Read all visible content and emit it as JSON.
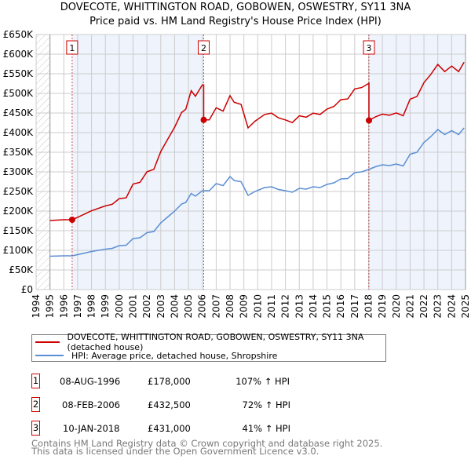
{
  "title": "DOVECOTE, WHITTINGTON ROAD, GOBOWEN, OSWESTRY, SY11 3NA",
  "subtitle": "Price paid vs. HM Land Registry's House Price Index (HPI)",
  "colors": {
    "property": "#cc0000",
    "hpi": "#5b8fd4",
    "shade": "#eef3fc",
    "grid": "#cccccc"
  },
  "chart_data": {
    "type": "line",
    "xlim": [
      1994,
      2025
    ],
    "ylim": [
      0,
      650000
    ],
    "yticks": [
      "£0",
      "£50K",
      "£100K",
      "£150K",
      "£200K",
      "£250K",
      "£300K",
      "£350K",
      "£400K",
      "£450K",
      "£500K",
      "£550K",
      "£600K",
      "£650K"
    ],
    "xticks": [
      "1994",
      "1995",
      "1996",
      "1997",
      "1998",
      "1999",
      "2000",
      "2001",
      "2002",
      "2003",
      "2004",
      "2005",
      "2006",
      "2007",
      "2008",
      "2009",
      "2010",
      "2011",
      "2012",
      "2013",
      "2014",
      "2015",
      "2016",
      "2017",
      "2018",
      "2019",
      "2020",
      "2021",
      "2022",
      "2023",
      "2024",
      "2025"
    ],
    "grid": true,
    "series": [
      {
        "name": "HPI: Average price, detached house, Shropshire",
        "x": [
          1995,
          1996,
          1996.6,
          1997,
          1998,
          1999,
          1999.5,
          2000,
          2000.5,
          2001,
          2001.5,
          2002,
          2002.5,
          2003,
          2003.5,
          2004,
          2004.5,
          2004.8,
          2005.2,
          2005.5,
          2006,
          2006.5,
          2007,
          2007.5,
          2008,
          2008.3,
          2008.8,
          2009.3,
          2009.8,
          2010.5,
          2011,
          2011.5,
          2012,
          2012.5,
          2013,
          2013.5,
          2014,
          2014.5,
          2015,
          2015.5,
          2016,
          2016.5,
          2017,
          2017.5,
          2018,
          2018.5,
          2019,
          2019.5,
          2020,
          2020.5,
          2021,
          2021.5,
          2022,
          2022.5,
          2023,
          2023.5,
          2024,
          2024.5,
          2024.9
        ],
        "y": [
          85000,
          86000,
          86000,
          89000,
          97000,
          103000,
          105000,
          112000,
          113000,
          130000,
          132000,
          145000,
          148000,
          170000,
          185000,
          200000,
          218000,
          222000,
          245000,
          238000,
          252000,
          252000,
          270000,
          265000,
          288000,
          278000,
          275000,
          240000,
          250000,
          260000,
          262000,
          255000,
          252000,
          248000,
          258000,
          256000,
          262000,
          260000,
          268000,
          272000,
          282000,
          283000,
          298000,
          300000,
          306000,
          313000,
          318000,
          316000,
          320000,
          315000,
          345000,
          350000,
          375000,
          390000,
          408000,
          395000,
          405000,
          395000,
          412000
        ]
      },
      {
        "name": "DOVECOTE, WHITTINGTON ROAD, GOBOWEN, OSWESTRY, SY11 3NA (detached house)",
        "derived": "HPI-indexed from each sale"
      }
    ],
    "sales": [
      {
        "id": "1",
        "x": 1996.6,
        "y": 178000
      },
      {
        "id": "2",
        "x": 2006.1,
        "y": 432500
      },
      {
        "id": "3",
        "x": 2018.03,
        "y": 431000
      }
    ]
  },
  "legend": {
    "property": "DOVECOTE, WHITTINGTON ROAD, GOBOWEN, OSWESTRY, SY11 3NA (detached house)",
    "hpi": "HPI: Average price, detached house, Shropshire"
  },
  "transactions": [
    {
      "id": "1",
      "date": "08-AUG-1996",
      "price": "£178,000",
      "hpi": "107% ↑ HPI"
    },
    {
      "id": "2",
      "date": "08-FEB-2006",
      "price": "£432,500",
      "hpi": "72% ↑ HPI"
    },
    {
      "id": "3",
      "date": "10-JAN-2018",
      "price": "£431,000",
      "hpi": "41% ↑ HPI"
    }
  ],
  "footer": {
    "line1": "Contains HM Land Registry data © Crown copyright and database right 2025.",
    "line2": "This data is licensed under the Open Government Licence v3.0."
  }
}
